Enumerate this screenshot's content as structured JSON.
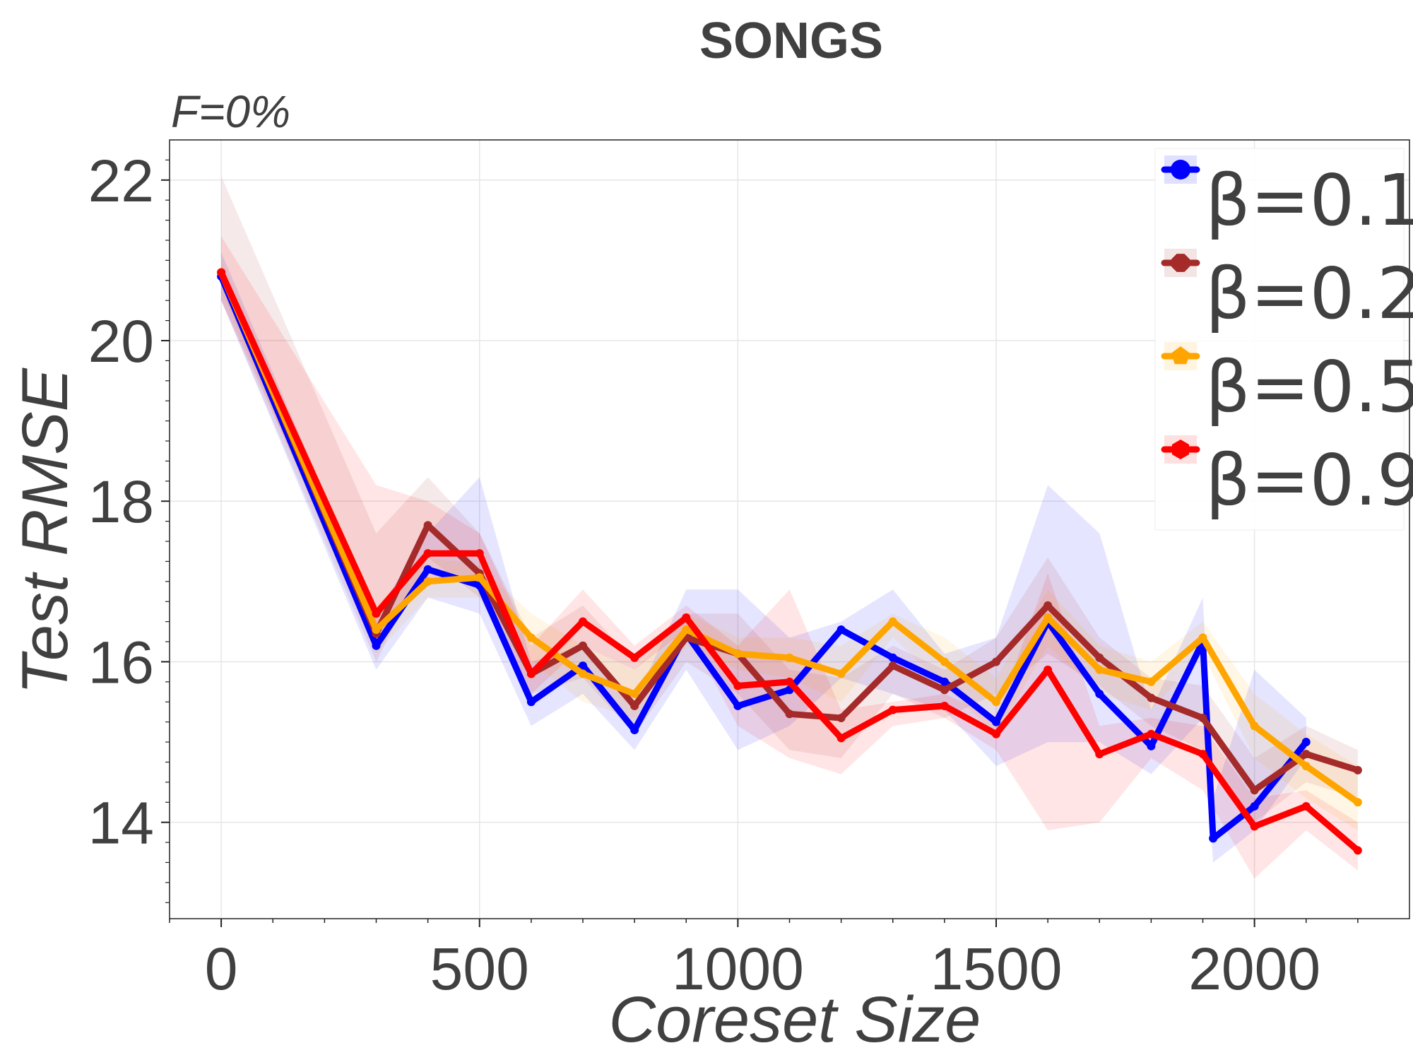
{
  "chart_data": {
    "type": "line",
    "title": "SONGS",
    "subtitle": "F=0%",
    "xlabel": "Coreset Size",
    "ylabel": "Test RMSE",
    "xlim": [
      -100,
      2300
    ],
    "ylim": [
      12.8,
      22.5
    ],
    "xticks": [
      0,
      500,
      1000,
      1500,
      2000
    ],
    "xtick_labels": [
      "0",
      "500",
      "1000",
      "1500",
      "2000"
    ],
    "yticks": [
      14,
      16,
      18,
      20,
      22
    ],
    "ytick_labels": [
      "14",
      "16",
      "18",
      "20",
      "22"
    ],
    "grid": true,
    "legend_position": "top-right",
    "series": [
      {
        "name": "β=0.1",
        "color": "#0000ff",
        "x": [
          0,
          300,
          400,
          500,
          600,
          700,
          800,
          900,
          1000,
          1100,
          1200,
          1300,
          1400,
          1500,
          1600,
          1700,
          1800,
          1900,
          1920,
          2000,
          2100
        ],
        "y": [
          20.8,
          16.2,
          17.15,
          16.95,
          15.5,
          15.95,
          15.15,
          16.35,
          15.45,
          15.65,
          16.4,
          16.05,
          15.75,
          15.25,
          16.5,
          15.6,
          14.95,
          16.25,
          13.8,
          14.2,
          15.0
        ],
        "upper": [
          21.1,
          16.6,
          17.6,
          18.3,
          16.0,
          16.2,
          15.5,
          16.9,
          16.9,
          16.3,
          16.5,
          16.9,
          16.1,
          16.3,
          18.2,
          17.6,
          15.4,
          16.8,
          14.3,
          15.9,
          15.3
        ],
        "lower": [
          20.5,
          15.9,
          16.8,
          16.6,
          15.2,
          15.6,
          14.9,
          15.9,
          14.9,
          15.2,
          15.8,
          15.6,
          15.4,
          14.7,
          15.0,
          15.0,
          14.6,
          15.3,
          13.5,
          13.9,
          14.8
        ]
      },
      {
        "name": "β=0.2",
        "color": "#a52a2a",
        "x": [
          0,
          300,
          400,
          500,
          600,
          700,
          800,
          900,
          1000,
          1100,
          1200,
          1300,
          1400,
          1500,
          1600,
          1700,
          1800,
          1900,
          2000,
          2100,
          2200
        ],
        "y": [
          20.85,
          16.35,
          17.7,
          17.1,
          15.85,
          16.2,
          15.45,
          16.3,
          16.1,
          15.35,
          15.3,
          15.95,
          15.65,
          16.0,
          16.7,
          16.05,
          15.55,
          15.3,
          14.4,
          14.85,
          14.65
        ],
        "upper": [
          22.05,
          17.6,
          18.3,
          17.6,
          16.3,
          16.7,
          16.0,
          16.6,
          16.6,
          15.9,
          15.8,
          16.2,
          15.9,
          16.3,
          17.3,
          16.3,
          15.8,
          15.7,
          14.8,
          15.2,
          14.9
        ],
        "lower": [
          20.5,
          16.0,
          17.3,
          16.8,
          15.6,
          15.8,
          15.1,
          16.0,
          15.6,
          14.9,
          14.8,
          15.6,
          15.3,
          15.6,
          16.1,
          15.7,
          15.2,
          14.9,
          14.0,
          14.5,
          14.3
        ]
      },
      {
        "name": "β=0.5",
        "color": "#ffa500",
        "x": [
          0,
          300,
          400,
          500,
          600,
          700,
          800,
          900,
          1000,
          1100,
          1200,
          1300,
          1400,
          1500,
          1600,
          1700,
          1800,
          1900,
          2000,
          2100,
          2200
        ],
        "y": [
          20.85,
          16.4,
          17.0,
          17.05,
          16.3,
          15.85,
          15.6,
          16.4,
          16.1,
          16.05,
          15.85,
          16.5,
          16.0,
          15.5,
          16.55,
          15.9,
          15.75,
          16.3,
          15.2,
          14.7,
          14.25
        ],
        "upper": [
          21.0,
          16.7,
          17.3,
          17.2,
          16.6,
          16.2,
          15.9,
          16.6,
          16.3,
          16.3,
          16.2,
          16.6,
          16.3,
          15.8,
          16.9,
          16.2,
          16.0,
          16.5,
          15.6,
          15.1,
          14.7
        ],
        "lower": [
          20.6,
          16.1,
          16.8,
          16.8,
          16.0,
          15.5,
          15.3,
          16.2,
          15.9,
          15.8,
          15.5,
          16.3,
          15.7,
          15.1,
          16.2,
          15.6,
          15.4,
          16.1,
          14.8,
          14.3,
          13.9
        ]
      },
      {
        "name": "β=0.9",
        "color": "#ff0000",
        "x": [
          0,
          300,
          400,
          500,
          600,
          700,
          800,
          900,
          1000,
          1100,
          1200,
          1300,
          1400,
          1500,
          1600,
          1700,
          1800,
          1900,
          2000,
          2100,
          2200
        ],
        "y": [
          20.85,
          16.6,
          17.35,
          17.35,
          15.85,
          16.5,
          16.05,
          16.55,
          15.7,
          15.75,
          15.05,
          15.4,
          15.45,
          15.1,
          15.9,
          14.85,
          15.1,
          14.85,
          13.95,
          14.2,
          13.65
        ],
        "upper": [
          21.3,
          18.2,
          18.0,
          17.6,
          16.2,
          16.9,
          16.2,
          16.7,
          16.2,
          16.9,
          15.4,
          15.5,
          15.6,
          15.3,
          17.1,
          15.2,
          15.3,
          15.2,
          14.3,
          14.4,
          14.0
        ],
        "lower": [
          20.5,
          16.3,
          17.0,
          17.0,
          15.6,
          16.2,
          15.9,
          16.4,
          15.2,
          14.8,
          14.6,
          15.2,
          15.3,
          14.9,
          13.9,
          14.0,
          14.8,
          14.4,
          13.3,
          13.9,
          13.4
        ]
      }
    ]
  }
}
